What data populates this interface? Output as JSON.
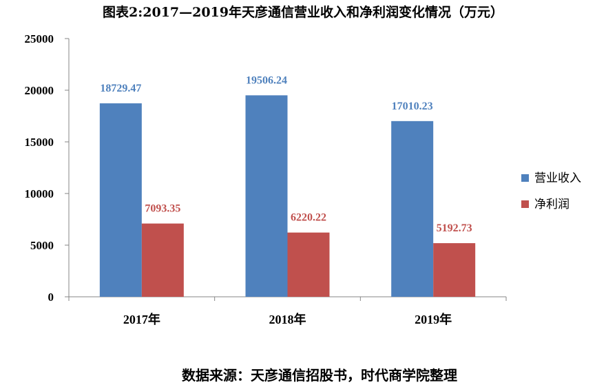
{
  "chart_data": {
    "type": "bar",
    "title": "图表2:2017—2019年天彦通信营业收入和净利润变化情况（万元）",
    "categories": [
      "2017年",
      "2018年",
      "2019年"
    ],
    "series": [
      {
        "name": "营业收入",
        "values": [
          18729.47,
          19506.24,
          17010.23
        ],
        "labels": [
          "18729.47",
          "19506.24",
          "17010.23"
        ],
        "color": "#4F81BD",
        "label_color": "#4F81BD"
      },
      {
        "name": "净利润",
        "values": [
          7093.35,
          6220.22,
          5192.73
        ],
        "labels": [
          "7093.35",
          "6220.22",
          "5192.73"
        ],
        "color": "#C0504D",
        "label_color": "#C0504D"
      }
    ],
    "ylim": [
      0,
      25000
    ],
    "yticks": [
      0,
      5000,
      10000,
      15000,
      20000,
      25000
    ],
    "xlabel": "",
    "ylabel": "",
    "grid": false,
    "legend_position": "right",
    "data_labels": true
  },
  "source_note": "数据来源：天彦通信招股书，时代商学院整理"
}
